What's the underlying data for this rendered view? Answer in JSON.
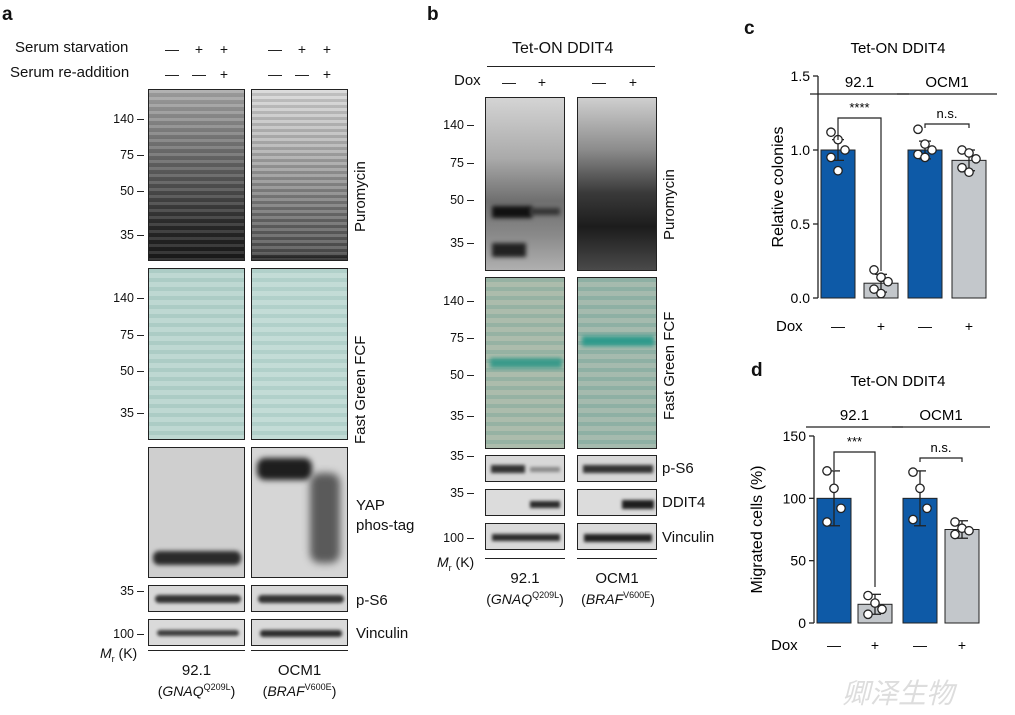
{
  "panels": {
    "a": {
      "letter": "a",
      "rows": {
        "serum_starvation": "Serum starvation",
        "serum_readdition": "Serum re-addition",
        "starvation_signs": [
          "—",
          "+",
          "+",
          "—",
          "+",
          "+"
        ],
        "readdition_signs": [
          "—",
          "—",
          "+",
          "—",
          "—",
          "+"
        ]
      },
      "blots": {
        "puromycin": "Puromycin",
        "fast_green": "Fast Green FCF",
        "yap1": "YAP",
        "yap2": "phos-tag",
        "ps6": "p-S6",
        "vinculin": "Vinculin"
      },
      "markers_puro": [
        "140",
        "75",
        "50",
        "35"
      ],
      "markers_fg": [
        "140",
        "75",
        "50",
        "35"
      ],
      "marker_ps6": "35",
      "marker_vinc": "100",
      "mr": "M",
      "mr_sub": "r",
      "mr_unit": " (K)",
      "lanes": {
        "g1": "92.1",
        "g1_gene": "GNAQ",
        "g1_mut": "Q209L",
        "g2": "OCM1",
        "g2_gene": "BRAF",
        "g2_mut": "V600E"
      }
    },
    "b": {
      "letter": "b",
      "title": "Tet-ON DDIT4",
      "dox": "Dox",
      "dox_signs": [
        "—",
        "+",
        "—",
        "+"
      ],
      "blots": {
        "puromycin": "Puromycin",
        "fast_green": "Fast Green FCF",
        "ps6": "p-S6",
        "ddit4": "DDIT4",
        "vinculin": "Vinculin"
      },
      "markers_puro": [
        "140",
        "75",
        "50",
        "35"
      ],
      "markers_fg": [
        "140",
        "75",
        "50",
        "35"
      ],
      "marker_ps6": "35",
      "marker_ddit4": "35",
      "marker_vinc": "100",
      "mr": "M",
      "mr_sub": "r",
      "mr_unit": " (K)",
      "lanes": {
        "g1": "92.1",
        "g1_gene": "GNAQ",
        "g1_mut": "Q209L",
        "g2": "OCM1",
        "g2_gene": "BRAF",
        "g2_mut": "V600E"
      }
    },
    "c": {
      "letter": "c",
      "group1": "92.1",
      "group2": "OCM1",
      "sig1": "****",
      "sig2": "n.s.",
      "dox": "Dox",
      "dox_signs": [
        "—",
        "+",
        "—",
        "+"
      ]
    },
    "d": {
      "letter": "d",
      "group1": "92.1",
      "group2": "OCM1",
      "sig1": "***",
      "sig2": "n.s.",
      "dox": "Dox",
      "dox_signs": [
        "—",
        "+",
        "—",
        "+"
      ]
    }
  },
  "colors": {
    "blue": "#0e5aa7",
    "grey": "#c3c7cb",
    "axis": "#222222"
  },
  "watermark": "卿泽生物",
  "chart_data": [
    {
      "type": "bar",
      "title": "Tet-ON DDIT4",
      "ylabel": "Relative colonies",
      "ylim": [
        0,
        1.5
      ],
      "yticks": [
        "0.0",
        "0.5",
        "1.0",
        "1.5"
      ],
      "categories": [
        "92.1 —",
        "92.1 +",
        "OCM1 —",
        "OCM1 +"
      ],
      "values": [
        1.0,
        0.1,
        1.0,
        0.93
      ],
      "errors": [
        0.07,
        0.06,
        0.06,
        0.07
      ],
      "bar_colors": [
        "blue",
        "grey",
        "blue",
        "grey"
      ],
      "points": [
        [
          1.12,
          1.07,
          1.0,
          0.95,
          0.86
        ],
        [
          0.19,
          0.14,
          0.11,
          0.06,
          0.03
        ],
        [
          1.14,
          1.04,
          1.0,
          0.97,
          0.95
        ],
        [
          1.0,
          0.98,
          0.94,
          0.88,
          0.85
        ]
      ],
      "grid": false
    },
    {
      "type": "bar",
      "title": "Tet-ON DDIT4",
      "ylabel": "Migrated cells (%)",
      "ylim": [
        0,
        150
      ],
      "yticks": [
        "0",
        "50",
        "100",
        "150"
      ],
      "categories": [
        "92.1 —",
        "92.1 +",
        "OCM1 —",
        "OCM1 +"
      ],
      "values": [
        100,
        15,
        100,
        75
      ],
      "errors": [
        22,
        8,
        22,
        7
      ],
      "bar_colors": [
        "blue",
        "grey",
        "blue",
        "grey"
      ],
      "points": [
        [
          122,
          108,
          92,
          81
        ],
        [
          22,
          16,
          11,
          7
        ],
        [
          121,
          108,
          92,
          83
        ],
        [
          81,
          76,
          74,
          71
        ]
      ],
      "grid": false
    }
  ]
}
